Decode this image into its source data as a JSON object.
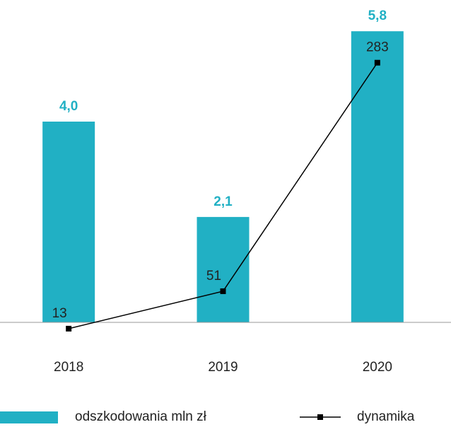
{
  "chart_data": {
    "type": "bar_line",
    "categories": [
      "2018",
      "2019",
      "2020"
    ],
    "series": [
      {
        "name": "odszkodowania mln zł",
        "type": "bar",
        "color": "#21b0c4",
        "values": [
          4.0,
          2.1,
          5.8
        ],
        "value_labels": [
          "4,0",
          "2,1",
          "5,8"
        ]
      },
      {
        "name": "dynamika",
        "type": "line",
        "axis": "y2",
        "color": "#000000",
        "values": [
          13,
          51,
          283
        ]
      }
    ],
    "ylim": [
      0,
      6
    ],
    "y2lim": [
      0,
      300
    ]
  }
}
